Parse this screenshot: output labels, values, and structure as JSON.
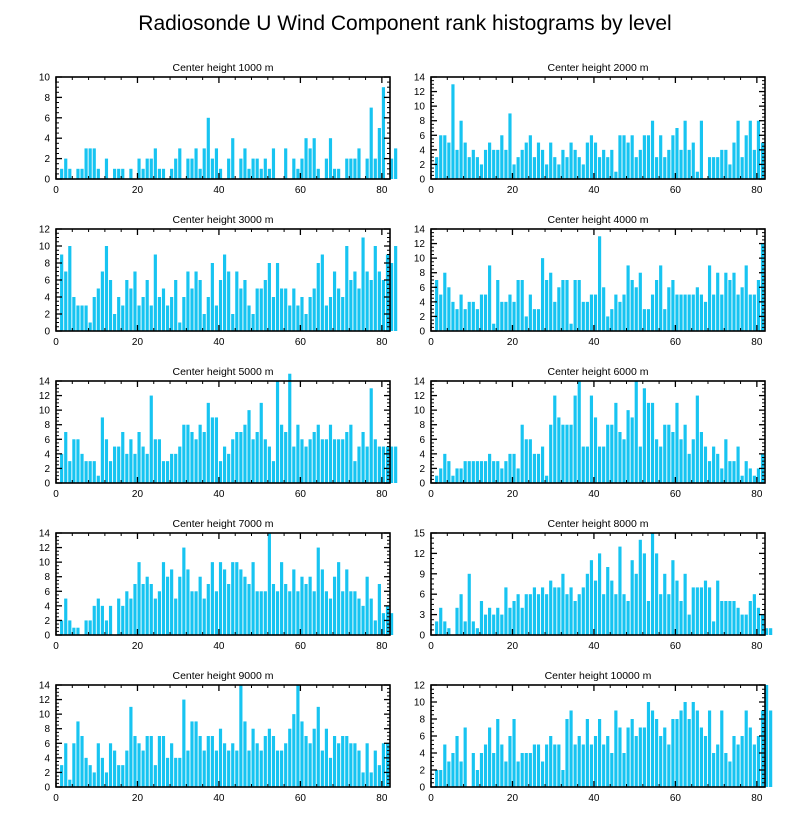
{
  "title": "Radiosonde U Wind Component rank histograms by level",
  "bar_color": "#17c4f1",
  "chart_data": [
    {
      "type": "bar",
      "title": "Center height 1000 m",
      "x_ticks": [
        0,
        20,
        40,
        60,
        80
      ],
      "xlim": [
        0,
        82
      ],
      "ylim": [
        0,
        10
      ],
      "y_ticks": [
        0,
        2,
        4,
        6,
        8,
        10
      ],
      "values": [
        0,
        1,
        2,
        1,
        0,
        1,
        1,
        3,
        3,
        3,
        1,
        0,
        2,
        0,
        1,
        1,
        1,
        0,
        1,
        0,
        2,
        1,
        2,
        2,
        3,
        1,
        1,
        0,
        1,
        2,
        3,
        0,
        2,
        2,
        3,
        1,
        3,
        6,
        2,
        3,
        1,
        0,
        2,
        4,
        0,
        2,
        3,
        1,
        2,
        2,
        1,
        2,
        1,
        3,
        0,
        0,
        3,
        0,
        2,
        1,
        2,
        4,
        3,
        4,
        1,
        0,
        2,
        4,
        1,
        1,
        0,
        2,
        2,
        2,
        3,
        0,
        2,
        7,
        2,
        5,
        9,
        0,
        2,
        3
      ]
    },
    {
      "type": "bar",
      "title": "Center height 2000 m",
      "x_ticks": [
        0,
        20,
        40,
        60,
        80
      ],
      "xlim": [
        0,
        82
      ],
      "ylim": [
        0,
        14
      ],
      "y_ticks": [
        0,
        2,
        4,
        6,
        8,
        10,
        12,
        14
      ],
      "values": [
        0,
        3,
        6,
        6,
        5,
        13,
        4,
        8,
        5,
        3,
        4,
        3,
        2,
        4,
        5,
        4,
        4,
        6,
        4,
        9,
        2,
        3,
        4,
        5,
        6,
        3,
        5,
        4,
        2,
        5,
        3,
        2,
        4,
        3,
        5,
        4,
        3,
        2,
        5,
        6,
        5,
        3,
        4,
        3,
        4,
        1,
        6,
        6,
        5,
        6,
        3,
        4,
        6,
        6,
        8,
        3,
        6,
        3,
        4,
        6,
        7,
        4,
        8,
        4,
        5,
        1,
        8,
        0,
        3,
        3,
        3,
        4,
        4,
        2,
        5,
        8,
        3,
        6,
        8,
        4,
        8,
        5
      ]
    },
    {
      "type": "bar",
      "title": "Center height 3000 m",
      "x_ticks": [
        0,
        20,
        40,
        60,
        80
      ],
      "xlim": [
        0,
        82
      ],
      "ylim": [
        0,
        12
      ],
      "y_ticks": [
        0,
        2,
        4,
        6,
        8,
        10,
        12
      ],
      "values": [
        0,
        9,
        7,
        10,
        4,
        3,
        3,
        3,
        1,
        4,
        5,
        7,
        10,
        6,
        2,
        4,
        3,
        6,
        5,
        7,
        3,
        4,
        6,
        3,
        9,
        4,
        5,
        3,
        4,
        6,
        1,
        4,
        7,
        5,
        7,
        6,
        2,
        4,
        8,
        3,
        6,
        9,
        7,
        2,
        7,
        5,
        6,
        3,
        2,
        5,
        5,
        6,
        8,
        4,
        8,
        5,
        5,
        3,
        5,
        3,
        4,
        2,
        4,
        5,
        8,
        9,
        3,
        4,
        7,
        5,
        4,
        10,
        6,
        7,
        5,
        11,
        7,
        6,
        10,
        7,
        6,
        9,
        8,
        10
      ]
    },
    {
      "type": "bar",
      "title": "Center height 4000 m",
      "x_ticks": [
        0,
        20,
        40,
        60,
        80
      ],
      "xlim": [
        0,
        82
      ],
      "ylim": [
        0,
        14
      ],
      "y_ticks": [
        0,
        2,
        4,
        6,
        8,
        10,
        12,
        14
      ],
      "values": [
        0,
        7,
        5,
        8,
        6,
        4,
        3,
        5,
        3,
        4,
        4,
        3,
        5,
        5,
        9,
        1,
        7,
        4,
        4,
        5,
        4,
        7,
        7,
        2,
        5,
        3,
        3,
        10,
        7,
        8,
        4,
        6,
        7,
        7,
        1,
        7,
        7,
        4,
        4,
        5,
        5,
        13,
        6,
        2,
        3,
        5,
        4,
        5,
        9,
        7,
        6,
        8,
        3,
        3,
        5,
        7,
        9,
        3,
        6,
        7,
        5,
        5,
        5,
        5,
        5,
        6,
        5,
        4,
        9,
        5,
        8,
        5,
        8,
        7,
        8,
        5,
        6,
        9,
        5,
        5,
        7,
        12
      ]
    },
    {
      "type": "bar",
      "title": "Center height 5000 m",
      "x_ticks": [
        0,
        20,
        40,
        60,
        80
      ],
      "xlim": [
        0,
        82
      ],
      "ylim": [
        0,
        14
      ],
      "y_ticks": [
        0,
        2,
        4,
        6,
        8,
        10,
        12,
        14
      ],
      "values": [
        0,
        4,
        7,
        3,
        6,
        6,
        4,
        3,
        3,
        3,
        1,
        9,
        6,
        3,
        5,
        5,
        7,
        4,
        6,
        4,
        7,
        5,
        4,
        12,
        6,
        6,
        3,
        3,
        4,
        4,
        5,
        8,
        8,
        7,
        6,
        8,
        7,
        11,
        9,
        9,
        3,
        5,
        4,
        6,
        7,
        7,
        8,
        10,
        6,
        7,
        11,
        6,
        5,
        3,
        14,
        8,
        7,
        15,
        5,
        8,
        6,
        5,
        6,
        7,
        8,
        6,
        6,
        8,
        6,
        6,
        6,
        7,
        8,
        3,
        5,
        7,
        5,
        13,
        6,
        5,
        5,
        5,
        5,
        5
      ]
    },
    {
      "type": "bar",
      "title": "Center height 6000 m",
      "x_ticks": [
        0,
        20,
        40,
        60,
        80
      ],
      "xlim": [
        0,
        82
      ],
      "ylim": [
        0,
        14
      ],
      "y_ticks": [
        0,
        2,
        4,
        6,
        8,
        10,
        12,
        14
      ],
      "values": [
        0,
        1,
        2,
        4,
        3,
        1,
        2,
        2,
        3,
        3,
        3,
        3,
        3,
        3,
        4,
        3,
        3,
        2,
        3,
        4,
        4,
        2,
        8,
        6,
        6,
        4,
        4,
        5,
        1,
        8,
        12,
        9,
        8,
        8,
        8,
        12,
        14,
        5,
        5,
        12,
        9,
        5,
        5,
        8,
        8,
        11,
        7,
        6,
        10,
        9,
        14,
        5,
        13,
        11,
        11,
        6,
        5,
        8,
        8,
        7,
        11,
        6,
        8,
        4,
        6,
        12,
        7,
        5,
        3,
        5,
        4,
        2,
        6,
        3,
        3,
        5,
        1,
        3,
        2,
        1,
        2,
        4
      ]
    },
    {
      "type": "bar",
      "title": "Center height 7000 m",
      "x_ticks": [
        0,
        20,
        40,
        60,
        80
      ],
      "xlim": [
        0,
        82
      ],
      "ylim": [
        0,
        14
      ],
      "y_ticks": [
        0,
        2,
        4,
        6,
        8,
        10,
        12,
        14
      ],
      "values": [
        0,
        2,
        5,
        2,
        1,
        1,
        0,
        2,
        2,
        4,
        5,
        4,
        2,
        4,
        0,
        5,
        4,
        6,
        5,
        7,
        10,
        7,
        8,
        7,
        5,
        6,
        10,
        8,
        9,
        5,
        8,
        12,
        9,
        6,
        6,
        8,
        5,
        7,
        10,
        6,
        10,
        9,
        7,
        10,
        10,
        9,
        8,
        7,
        10,
        6,
        6,
        6,
        14,
        7,
        6,
        10,
        7,
        6,
        9,
        6,
        8,
        7,
        8,
        6,
        12,
        9,
        6,
        5,
        8,
        10,
        6,
        9,
        6,
        6,
        5,
        4,
        8,
        5,
        2,
        7,
        3,
        4,
        3
      ]
    },
    {
      "type": "bar",
      "title": "Center height 8000 m",
      "x_ticks": [
        0,
        20,
        40,
        60,
        80
      ],
      "xlim": [
        0,
        82
      ],
      "ylim": [
        0,
        15
      ],
      "y_ticks": [
        0,
        3,
        6,
        9,
        12,
        15
      ],
      "values": [
        0,
        2,
        4,
        2,
        1,
        0,
        4,
        6,
        2,
        9,
        2,
        1,
        5,
        3,
        4,
        3,
        4,
        3,
        7,
        4,
        5,
        6,
        4,
        6,
        6,
        7,
        6,
        7,
        6,
        8,
        7,
        7,
        9,
        6,
        7,
        5,
        6,
        7,
        9,
        11,
        8,
        12,
        6,
        10,
        8,
        6,
        13,
        6,
        5,
        11,
        9,
        14,
        12,
        5,
        15,
        12,
        6,
        9,
        6,
        11,
        8,
        5,
        9,
        3,
        7,
        7,
        7,
        8,
        7,
        2,
        8,
        5,
        5,
        5,
        5,
        4,
        3,
        3,
        5,
        6,
        4,
        3,
        1,
        1
      ]
    },
    {
      "type": "bar",
      "title": "Center height 9000 m",
      "x_ticks": [
        0,
        20,
        40,
        60,
        80
      ],
      "xlim": [
        0,
        82
      ],
      "ylim": [
        0,
        14
      ],
      "y_ticks": [
        0,
        2,
        4,
        6,
        8,
        10,
        12,
        14
      ],
      "values": [
        0,
        3,
        6,
        1,
        6,
        9,
        7,
        4,
        3,
        2,
        6,
        4,
        2,
        6,
        5,
        3,
        3,
        5,
        11,
        7,
        6,
        5,
        7,
        7,
        3,
        7,
        7,
        4,
        6,
        4,
        4,
        12,
        5,
        9,
        9,
        7,
        5,
        7,
        7,
        5,
        8,
        6,
        5,
        6,
        5,
        14,
        9,
        5,
        8,
        6,
        5,
        7,
        8,
        7,
        5,
        5,
        6,
        8,
        10,
        14,
        9,
        7,
        6,
        8,
        11,
        5,
        8,
        4,
        7,
        6,
        7,
        7,
        6,
        6,
        5,
        2,
        6,
        2,
        5,
        3,
        6,
        6
      ]
    },
    {
      "type": "bar",
      "title": "Center height 10000 m",
      "x_ticks": [
        0,
        20,
        40,
        60,
        80
      ],
      "xlim": [
        0,
        82
      ],
      "ylim": [
        0,
        12
      ],
      "y_ticks": [
        0,
        2,
        4,
        6,
        8,
        10,
        12
      ],
      "values": [
        0,
        2,
        2,
        5,
        3,
        4,
        6,
        3,
        7,
        0,
        4,
        2,
        4,
        5,
        7,
        4,
        8,
        5,
        3,
        6,
        8,
        3,
        4,
        4,
        4,
        5,
        5,
        3,
        5,
        6,
        5,
        5,
        2,
        8,
        9,
        5,
        6,
        5,
        8,
        5,
        6,
        8,
        5,
        6,
        4,
        9,
        7,
        4,
        7,
        8,
        6,
        7,
        7,
        10,
        9,
        8,
        6,
        7,
        5,
        8,
        8,
        9,
        10,
        8,
        10,
        9,
        7,
        6,
        9,
        4,
        5,
        9,
        4,
        3,
        6,
        5,
        6,
        9,
        7,
        5,
        6,
        9,
        12,
        9
      ]
    }
  ]
}
